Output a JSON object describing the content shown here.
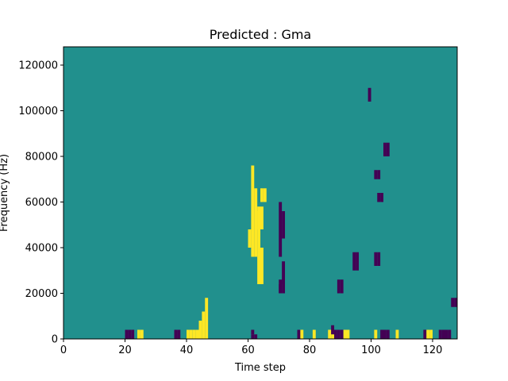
{
  "chart_data": {
    "type": "heatmap",
    "title": "Predicted : Gma",
    "xlabel": "Time step",
    "ylabel": "Frequency (Hz)",
    "xlim": [
      0,
      128
    ],
    "ylim": [
      0,
      128000
    ],
    "x_ticks": [
      0,
      20,
      40,
      60,
      80,
      100,
      120
    ],
    "x_tick_labels": [
      "0",
      "20",
      "40",
      "60",
      "80",
      "100",
      "120"
    ],
    "y_ticks": [
      0,
      20000,
      40000,
      60000,
      80000,
      100000,
      120000
    ],
    "y_tick_labels": [
      "0",
      "20000",
      "40000",
      "60000",
      "80000",
      "100000",
      "120000"
    ],
    "grid": false,
    "legend": "none",
    "colormap": "viridis",
    "value_levels": [
      -1,
      0,
      1
    ],
    "colors": {
      "background_level": "#21908d",
      "low_level": "#440154",
      "high_level": "#fde725"
    },
    "background_value": 0,
    "cells_description": "sparse binary mask; each entry [time_step, frequency_bin_start_hz, frequency_bin_end_hz, value]",
    "cells": [
      [
        61,
        0,
        2000,
        -1
      ],
      [
        62,
        0,
        2000,
        -1
      ],
      [
        61,
        2000,
        4000,
        -1
      ],
      [
        20,
        0,
        4000,
        -1
      ],
      [
        21,
        0,
        4000,
        -1
      ],
      [
        22,
        0,
        4000,
        -1
      ],
      [
        24,
        0,
        4000,
        1
      ],
      [
        25,
        0,
        4000,
        1
      ],
      [
        36,
        0,
        4000,
        -1
      ],
      [
        37,
        0,
        4000,
        -1
      ],
      [
        40,
        0,
        4000,
        1
      ],
      [
        41,
        0,
        4000,
        1
      ],
      [
        42,
        0,
        4000,
        1
      ],
      [
        43,
        0,
        4000,
        1
      ],
      [
        44,
        0,
        8000,
        1
      ],
      [
        45,
        0,
        12000,
        1
      ],
      [
        46,
        0,
        18000,
        1
      ],
      [
        76,
        0,
        4000,
        -1
      ],
      [
        77,
        0,
        4000,
        1
      ],
      [
        81,
        0,
        4000,
        1
      ],
      [
        86,
        0,
        4000,
        1
      ],
      [
        87,
        0,
        4000,
        1
      ],
      [
        88,
        0,
        4000,
        -1
      ],
      [
        89,
        0,
        4000,
        -1
      ],
      [
        90,
        0,
        4000,
        -1
      ],
      [
        91,
        0,
        4000,
        1
      ],
      [
        92,
        0,
        4000,
        1
      ],
      [
        101,
        0,
        4000,
        1
      ],
      [
        103,
        0,
        4000,
        -1
      ],
      [
        104,
        0,
        4000,
        -1
      ],
      [
        105,
        0,
        4000,
        -1
      ],
      [
        108,
        0,
        4000,
        1
      ],
      [
        117,
        0,
        4000,
        -1
      ],
      [
        118,
        0,
        4000,
        1
      ],
      [
        119,
        0,
        4000,
        1
      ],
      [
        122,
        0,
        4000,
        -1
      ],
      [
        123,
        0,
        4000,
        -1
      ],
      [
        124,
        0,
        4000,
        -1
      ],
      [
        125,
        0,
        4000,
        -1
      ],
      [
        126,
        14000,
        18000,
        -1
      ],
      [
        127,
        14000,
        18000,
        -1
      ],
      [
        60,
        40000,
        48000,
        1
      ],
      [
        61,
        36000,
        76000,
        1
      ],
      [
        62,
        36000,
        66000,
        1
      ],
      [
        63,
        24000,
        56000,
        1
      ],
      [
        64,
        24000,
        40000,
        1
      ],
      [
        70,
        20000,
        26000,
        -1
      ],
      [
        71,
        20000,
        26000,
        -1
      ],
      [
        70,
        36000,
        60000,
        -1
      ],
      [
        71,
        44000,
        56000,
        -1
      ],
      [
        70,
        20000,
        24000,
        -1
      ],
      [
        71,
        24000,
        34000,
        -1
      ],
      [
        89,
        20000,
        26000,
        -1
      ],
      [
        90,
        20000,
        26000,
        -1
      ],
      [
        94,
        30000,
        38000,
        -1
      ],
      [
        95,
        30000,
        38000,
        -1
      ],
      [
        101,
        32000,
        38000,
        -1
      ],
      [
        102,
        32000,
        38000,
        -1
      ],
      [
        102,
        60000,
        64000,
        -1
      ],
      [
        103,
        60000,
        64000,
        -1
      ],
      [
        104,
        80000,
        86000,
        -1
      ],
      [
        105,
        80000,
        86000,
        -1
      ],
      [
        101,
        70000,
        74000,
        -1
      ],
      [
        102,
        70000,
        74000,
        -1
      ],
      [
        87,
        2000,
        6000,
        -1
      ],
      [
        99,
        104000,
        110000,
        -1
      ],
      [
        63,
        48000,
        58000,
        1
      ],
      [
        64,
        48000,
        58000,
        1
      ],
      [
        64,
        60000,
        66000,
        1
      ],
      [
        65,
        60000,
        66000,
        1
      ]
    ]
  }
}
